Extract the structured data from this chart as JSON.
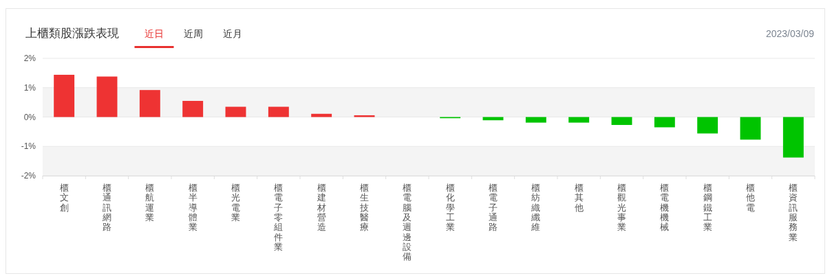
{
  "chart_data": {
    "type": "bar",
    "title": "上櫃類股漲跌表現",
    "subtitle": "2023/03/09",
    "annotations": [
      "近日",
      "近周",
      "近月"
    ],
    "categories": [
      "櫃文創",
      "櫃通訊網路",
      "櫃航運業",
      "櫃半導體業",
      "櫃光電業",
      "櫃電子零組件業",
      "櫃建材營造",
      "櫃生技醫療",
      "櫃電腦及週邊設備",
      "櫃化學工業",
      "櫃電子通路",
      "櫃紡織纖維",
      "櫃其他",
      "櫃觀光事業",
      "櫃電機機械",
      "櫃鋼鐵工業",
      "櫃他電",
      "櫃資訊服務業"
    ],
    "values": [
      1.44,
      1.38,
      0.92,
      0.55,
      0.35,
      0.35,
      0.11,
      0.06,
      0,
      -0.04,
      -0.11,
      -0.19,
      -0.19,
      -0.27,
      -0.35,
      -0.56,
      -0.77,
      -1.38
    ],
    "colors": [
      "#ee3333",
      "#ee3333",
      "#ee3333",
      "#ee3333",
      "#ee3333",
      "#ee3333",
      "#ee3333",
      "#ee3333",
      "#ee3333",
      "#00c400",
      "#00c400",
      "#00c400",
      "#00c400",
      "#00c400",
      "#00c400",
      "#00c400",
      "#00c400",
      "#00c400"
    ],
    "ylim": [
      -2,
      2
    ],
    "yticks": [
      {
        "value": -2,
        "label": "-2%"
      },
      {
        "value": -1,
        "label": "-1%"
      },
      {
        "value": 0,
        "label": "0%"
      },
      {
        "value": 1,
        "label": "1%"
      },
      {
        "value": 2,
        "label": "2%"
      }
    ],
    "grid": "y",
    "bands": [
      {
        "axis": "y",
        "from": 0,
        "to": 1,
        "color": "#f4f4f4"
      },
      {
        "axis": "y",
        "from": -2,
        "to": -1,
        "color": "#f4f4f4"
      }
    ]
  }
}
